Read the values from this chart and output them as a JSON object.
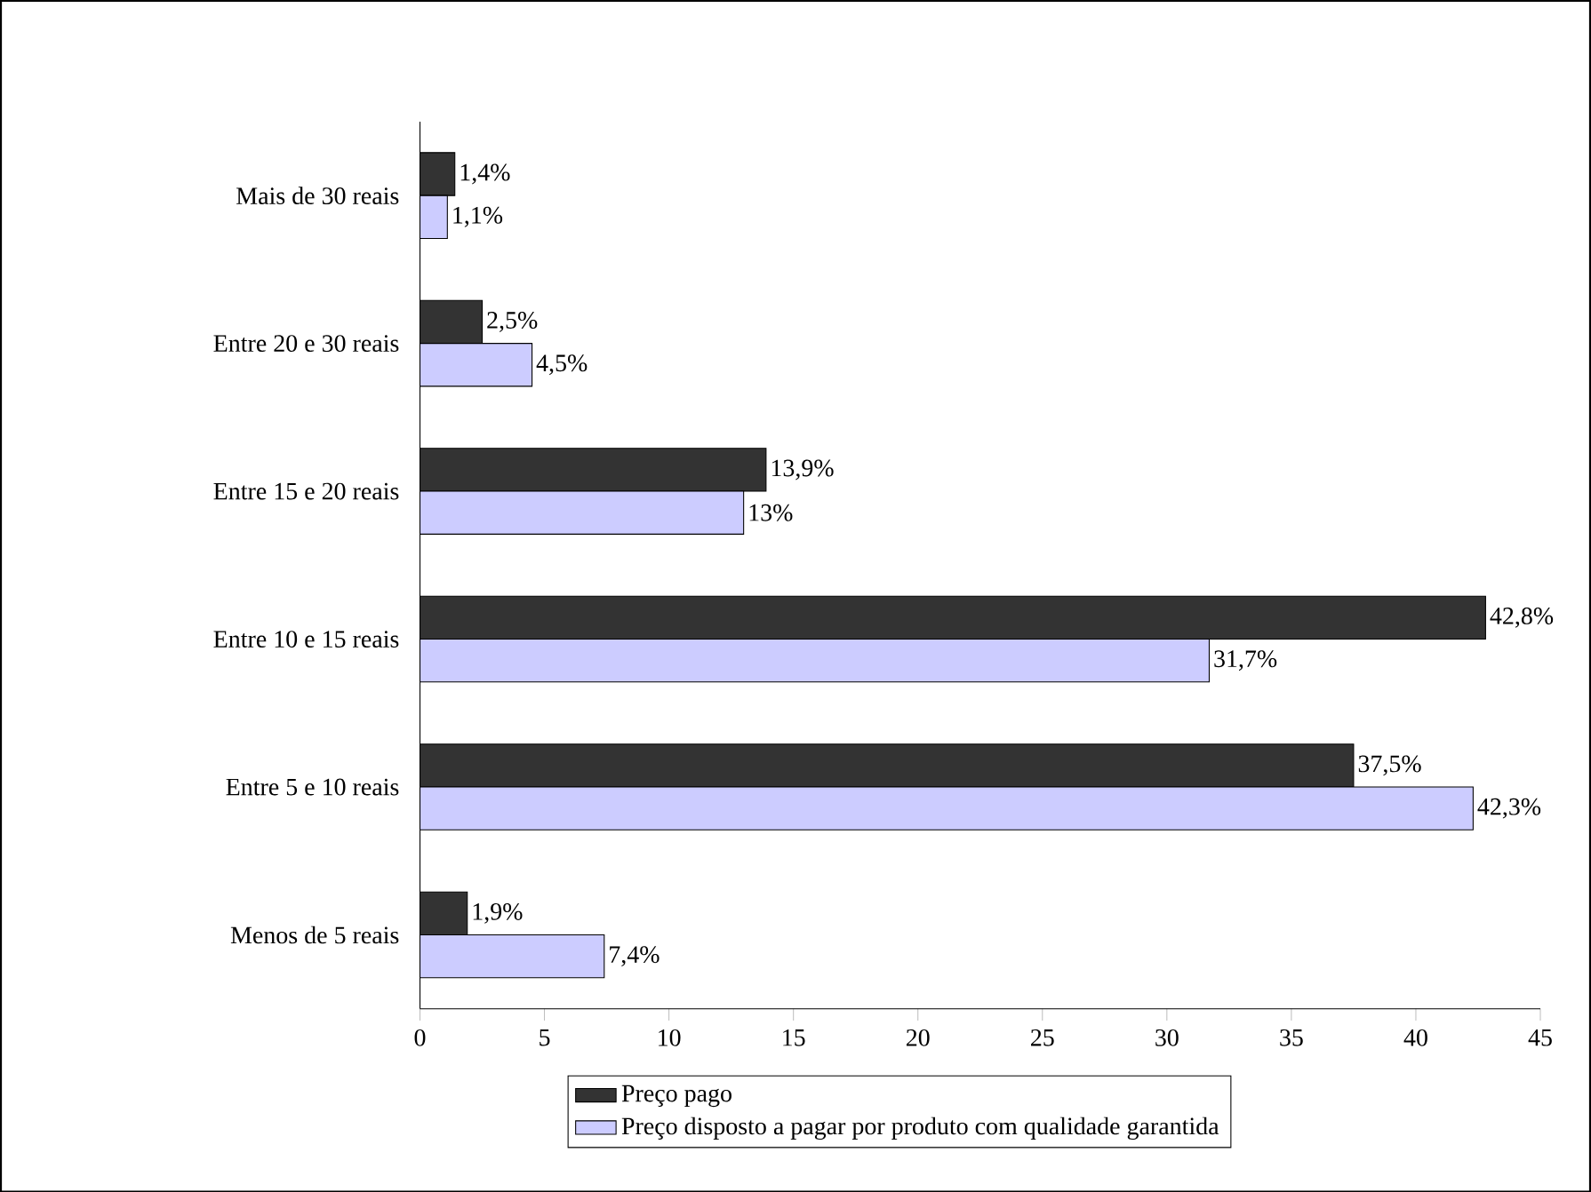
{
  "chart_data": {
    "type": "bar",
    "orientation": "horizontal",
    "categories": [
      "Mais de 30 reais",
      "Entre 20 e 30 reais",
      "Entre 15 e 20 reais",
      "Entre 10 e 15 reais",
      "Entre 5 e 10 reais",
      "Menos de 5 reais"
    ],
    "series": [
      {
        "name": "Preço pago",
        "color": "#333333",
        "values": [
          1.4,
          2.5,
          13.9,
          42.8,
          37.5,
          1.9
        ],
        "value_labels": [
          "1,4%",
          "2,5%",
          "13,9%",
          "42,8%",
          "37,5%",
          "1,9%"
        ]
      },
      {
        "name": "Preço disposto a pagar por produto com qualidade garantida",
        "color": "#ccccff",
        "values": [
          1.1,
          4.5,
          13,
          31.7,
          42.3,
          7.4
        ],
        "value_labels": [
          "1,1%",
          "4,5%",
          "13%",
          "31,7%",
          "42,3%",
          "7,4%"
        ]
      }
    ],
    "xlim": [
      0,
      45
    ],
    "xticks": [
      0,
      5,
      10,
      15,
      20,
      25,
      30,
      35,
      40,
      45
    ],
    "legend": "bottom"
  }
}
